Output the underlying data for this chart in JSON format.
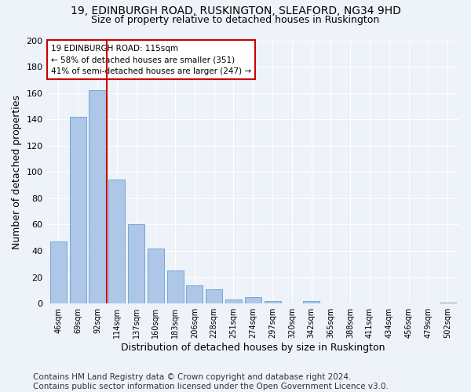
{
  "title": "19, EDINBURGH ROAD, RUSKINGTON, SLEAFORD, NG34 9HD",
  "subtitle": "Size of property relative to detached houses in Ruskington",
  "xlabel": "Distribution of detached houses by size in Ruskington",
  "ylabel": "Number of detached properties",
  "categories": [
    "46sqm",
    "69sqm",
    "92sqm",
    "114sqm",
    "137sqm",
    "160sqm",
    "183sqm",
    "206sqm",
    "228sqm",
    "251sqm",
    "274sqm",
    "297sqm",
    "320sqm",
    "342sqm",
    "365sqm",
    "388sqm",
    "411sqm",
    "434sqm",
    "456sqm",
    "479sqm",
    "502sqm"
  ],
  "values": [
    47,
    142,
    162,
    94,
    60,
    42,
    25,
    14,
    11,
    3,
    5,
    2,
    0,
    2,
    0,
    0,
    0,
    0,
    0,
    0,
    1
  ],
  "bar_color": "#aec6e8",
  "bar_edge_color": "#6fa8d6",
  "vline_pos": 2.5,
  "vline_color": "#cc0000",
  "annotation_text": "19 EDINBURGH ROAD: 115sqm\n← 58% of detached houses are smaller (351)\n41% of semi-detached houses are larger (247) →",
  "annotation_box_color": "#ffffff",
  "annotation_box_edge": "#cc0000",
  "ylim": [
    0,
    200
  ],
  "yticks": [
    0,
    20,
    40,
    60,
    80,
    100,
    120,
    140,
    160,
    180,
    200
  ],
  "bg_color": "#eef2f9",
  "plot_bg_color": "#eef2f9",
  "footer": "Contains HM Land Registry data © Crown copyright and database right 2024.\nContains public sector information licensed under the Open Government Licence v3.0.",
  "title_fontsize": 10,
  "subtitle_fontsize": 9,
  "xlabel_fontsize": 9,
  "ylabel_fontsize": 9,
  "footer_fontsize": 7.5
}
